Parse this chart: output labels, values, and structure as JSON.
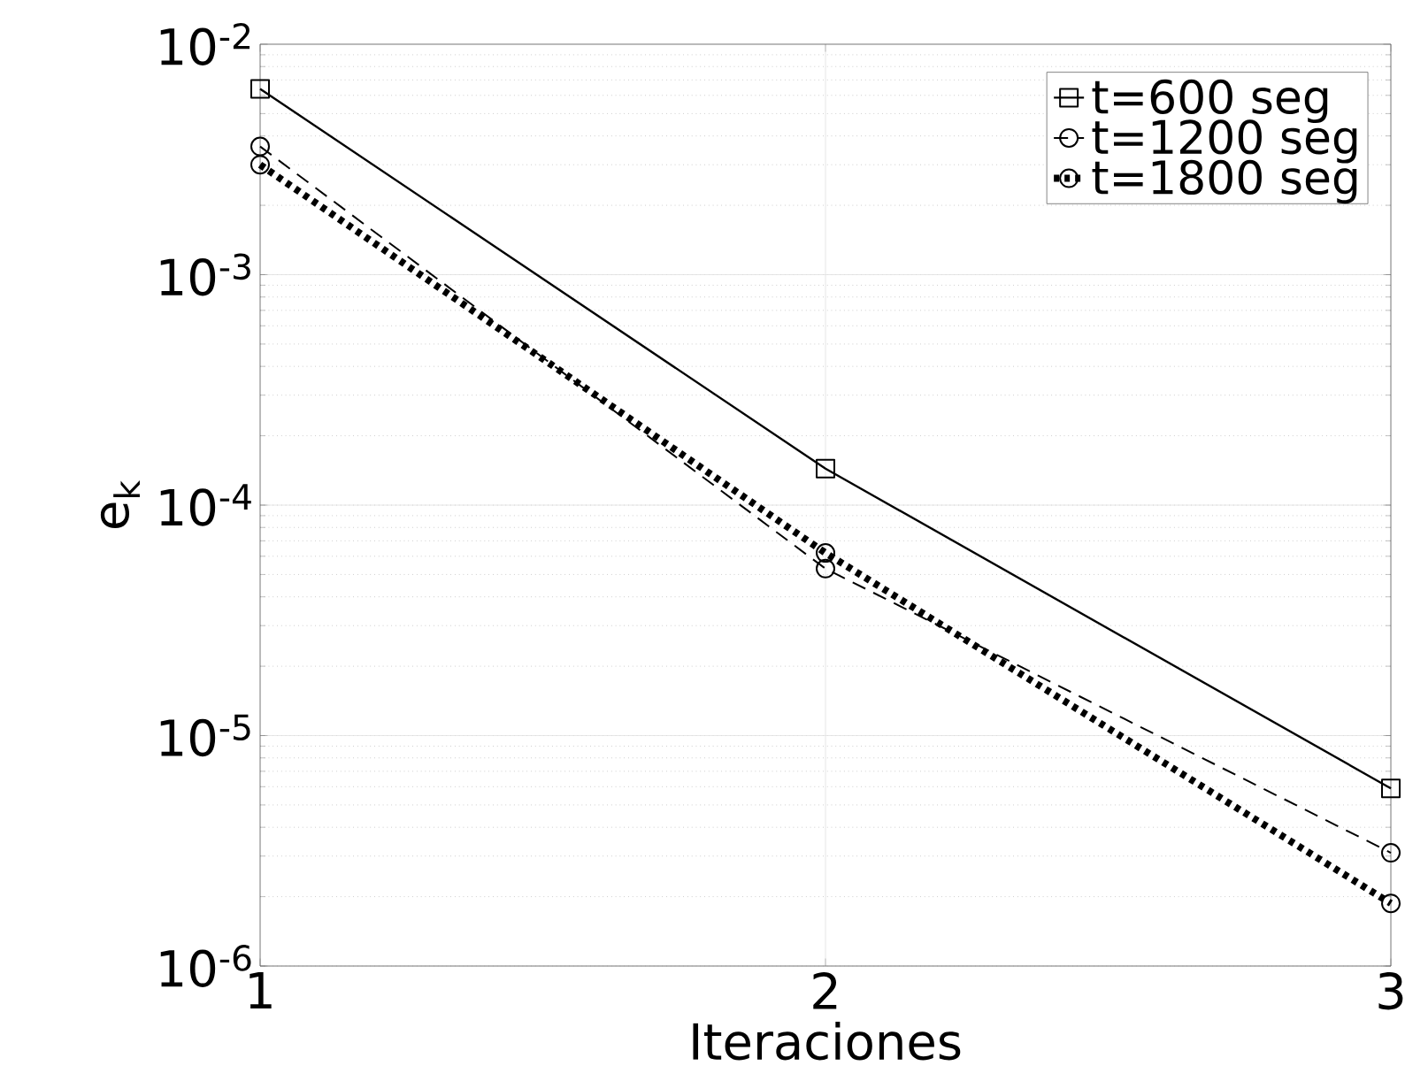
{
  "chart_data": {
    "type": "line",
    "xlabel": "Iteraciones",
    "ylabel": "e$_{k}$",
    "x": [
      1,
      2,
      3
    ],
    "series": [
      {
        "name": "t=600 seg",
        "color": "#000000",
        "marker": "square",
        "line_style": "solid",
        "values": [
          0.0064,
          0.000144,
          5.9e-06
        ]
      },
      {
        "name": "t=1200 seg",
        "color": "#000000",
        "marker": "circle",
        "line_style": "dashed",
        "values": [
          0.0036,
          5.3e-05,
          3.1e-06
        ]
      },
      {
        "name": "t=1800 seg",
        "color": "#000000",
        "marker": "circle",
        "line_style": "dotted",
        "values": [
          0.003,
          6.2e-05,
          1.87e-06
        ]
      }
    ],
    "xlim": [
      1,
      3
    ],
    "xticks": [
      1,
      2,
      3
    ],
    "ylim": [
      1e-06,
      0.01
    ],
    "yticks": [
      {
        "value": 1e-06,
        "label": "10$^{-6}$"
      },
      {
        "value": 1e-05,
        "label": "10$^{-5}$"
      },
      {
        "value": 0.0001,
        "label": "10$^{-4}$"
      },
      {
        "value": 0.001,
        "label": "10$^{-3}$"
      },
      {
        "value": 0.01,
        "label": "10$^{-2}$"
      }
    ],
    "log": "y",
    "grid": true,
    "legend": "top right"
  }
}
